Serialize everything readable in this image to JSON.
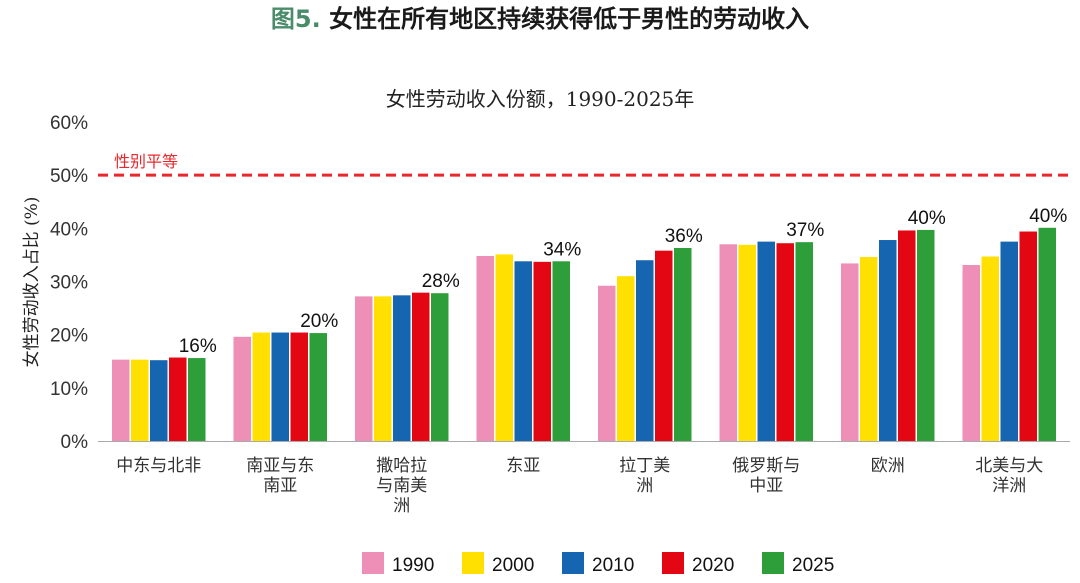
{
  "heading": {
    "fig_num": "图5.",
    "text": " 女性在所有地区持续获得低于男性的劳动收入"
  },
  "chart_data": {
    "type": "bar",
    "title": "女性劳动收入份额，1990-2025年",
    "ylabel": "女性劳动收入占比 (%)",
    "ylim": [
      0,
      60
    ],
    "yticks": [
      0,
      10,
      20,
      30,
      40,
      50,
      60
    ],
    "ytick_suffix": "%",
    "grid": false,
    "legend_position": "bottom",
    "categories": [
      [
        "中东与北非"
      ],
      [
        "南亚与东",
        "南亚"
      ],
      [
        "撒哈拉",
        "与南美",
        "洲"
      ],
      [
        "东亚"
      ],
      [
        "拉丁美",
        "洲"
      ],
      [
        "俄罗斯与",
        "中亚"
      ],
      [
        "欧洲"
      ],
      [
        "北美与大",
        "洋洲"
      ]
    ],
    "series": [
      {
        "name": "1990",
        "color": "#ee8fb8",
        "values": [
          15.3,
          19.6,
          27.2,
          34.8,
          29.2,
          37.0,
          33.4,
          33.1
        ]
      },
      {
        "name": "2000",
        "color": "#ffe000",
        "values": [
          15.3,
          20.4,
          27.2,
          35.1,
          31.0,
          36.9,
          34.6,
          34.7
        ]
      },
      {
        "name": "2010",
        "color": "#1565b0",
        "values": [
          15.2,
          20.4,
          27.4,
          33.8,
          34.0,
          37.5,
          37.8,
          37.5
        ]
      },
      {
        "name": "2020",
        "color": "#e30613",
        "values": [
          15.7,
          20.4,
          27.9,
          33.7,
          35.8,
          37.2,
          39.6,
          39.4
        ]
      },
      {
        "name": "2025",
        "color": "#2e9e3a",
        "values": [
          15.6,
          20.3,
          27.8,
          33.8,
          36.3,
          37.4,
          39.7,
          40.1
        ]
      }
    ],
    "data_labels": [
      "16%",
      "20%",
      "28%",
      "34%",
      "36%",
      "37%",
      "40%",
      "40%"
    ],
    "reference_line": {
      "value": 50,
      "label": "性别平等",
      "color": "#e8282c"
    }
  }
}
